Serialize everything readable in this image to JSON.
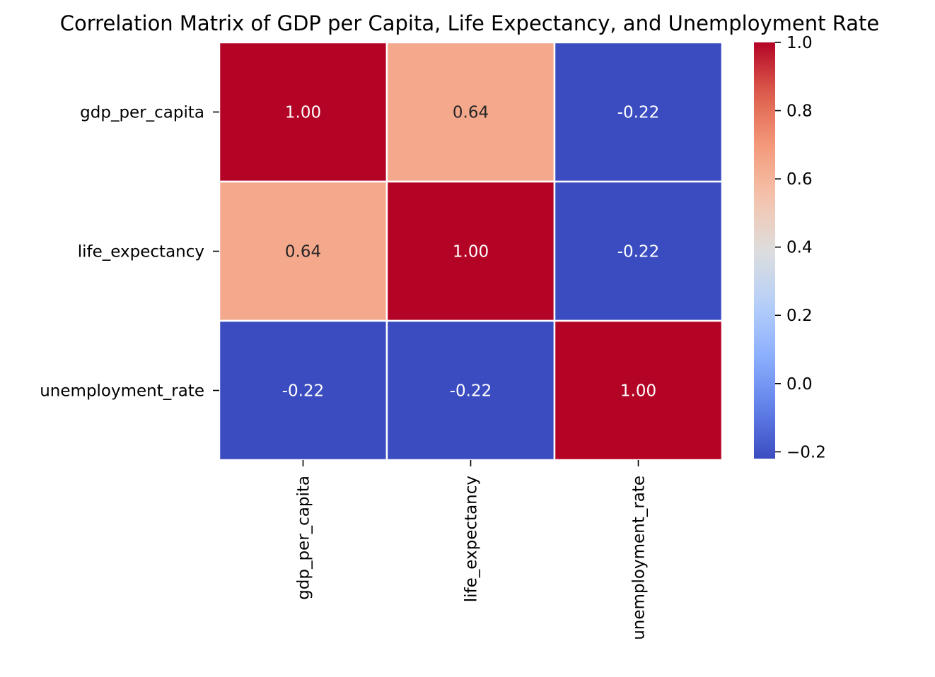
{
  "chart_data": {
    "type": "heatmap",
    "title": "Correlation Matrix of GDP per Capita, Life Expectancy, and Unemployment Rate",
    "xlabel": "",
    "ylabel": "",
    "x_categories": [
      "gdp_per_capita",
      "life_expectancy",
      "unemployment_rate"
    ],
    "y_categories": [
      "gdp_per_capita",
      "life_expectancy",
      "unemployment_rate"
    ],
    "values": [
      [
        1.0,
        0.64,
        -0.22
      ],
      [
        0.64,
        1.0,
        -0.22
      ],
      [
        -0.22,
        -0.22,
        1.0
      ]
    ],
    "cell_labels": [
      [
        "1.00",
        "0.64",
        "-0.22"
      ],
      [
        "0.64",
        "1.00",
        "-0.22"
      ],
      [
        "-0.22",
        "-0.22",
        "1.00"
      ]
    ],
    "colormap": "coolwarm",
    "color_range": [
      -0.22,
      1.0
    ],
    "colorbar": {
      "ticks": [
        -0.2,
        0.0,
        0.2,
        0.4,
        0.6,
        0.8,
        1.0
      ],
      "tick_labels": [
        "−0.2",
        "0.0",
        "0.2",
        "0.4",
        "0.6",
        "0.8",
        "1.0"
      ]
    },
    "grid": false,
    "legend": "colorbar-right"
  }
}
